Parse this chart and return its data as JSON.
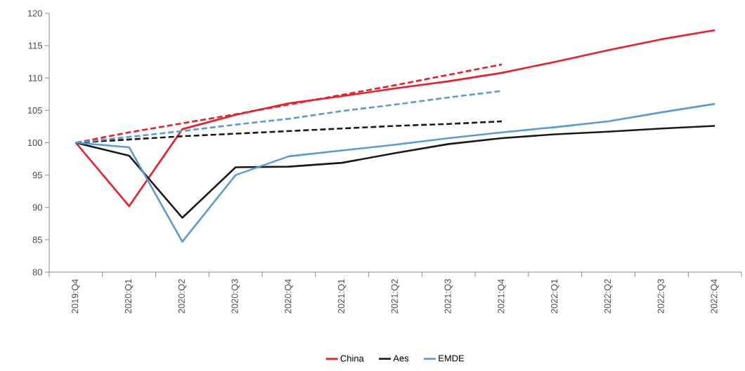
{
  "chart_data": {
    "type": "line",
    "categories": [
      "2019:Q4",
      "2020:Q1",
      "2020:Q2",
      "2020:Q3",
      "2020:Q4",
      "2021:Q1",
      "2021:Q2",
      "2021:Q3",
      "2021:Q4",
      "2022:Q1",
      "2022:Q2",
      "2022:Q3",
      "2022:Q4"
    ],
    "ylim": [
      80,
      120
    ],
    "yticks": [
      80,
      85,
      90,
      95,
      100,
      105,
      110,
      115,
      120
    ],
    "grid": false,
    "legend": "bottom",
    "marker": "none",
    "series": [
      {
        "name": "China",
        "color": "#e8202a",
        "line_style": "solid",
        "values": [
          100,
          90.2,
          102.1,
          104.3,
          106.1,
          107.2,
          108.4,
          109.5,
          110.8,
          112.5,
          114.3,
          116.0,
          117.4
        ]
      },
      {
        "name": "Aes",
        "color": "#1a1a1a",
        "line_style": "solid",
        "values": [
          100,
          98.0,
          88.4,
          96.2,
          96.3,
          96.9,
          98.4,
          99.8,
          100.7,
          101.3,
          101.7,
          102.2,
          102.6
        ]
      },
      {
        "name": "EMDE",
        "color": "#5b9bd5",
        "line_style": "solid",
        "values": [
          100,
          99.3,
          84.7,
          95.0,
          97.9,
          98.8,
          99.7,
          100.7,
          101.6,
          102.4,
          103.3,
          104.7,
          106.0
        ]
      },
      {
        "color": "#e8202a",
        "line_style": "dashed",
        "values": [
          100,
          101.6,
          103.0,
          104.4,
          105.9,
          107.4,
          108.9,
          110.5,
          112.1,
          null,
          null,
          null,
          null
        ]
      },
      {
        "color": "#1a1a1a",
        "line_style": "dashed",
        "values": [
          100,
          100.5,
          101.0,
          101.4,
          101.8,
          102.2,
          102.6,
          102.9,
          103.3,
          null,
          null,
          null,
          null
        ]
      },
      {
        "color": "#5b9bd5",
        "line_style": "dashed",
        "values": [
          100,
          100.9,
          101.8,
          102.8,
          103.7,
          104.9,
          105.9,
          107.0,
          108.0,
          null,
          null,
          null,
          null
        ]
      }
    ]
  }
}
